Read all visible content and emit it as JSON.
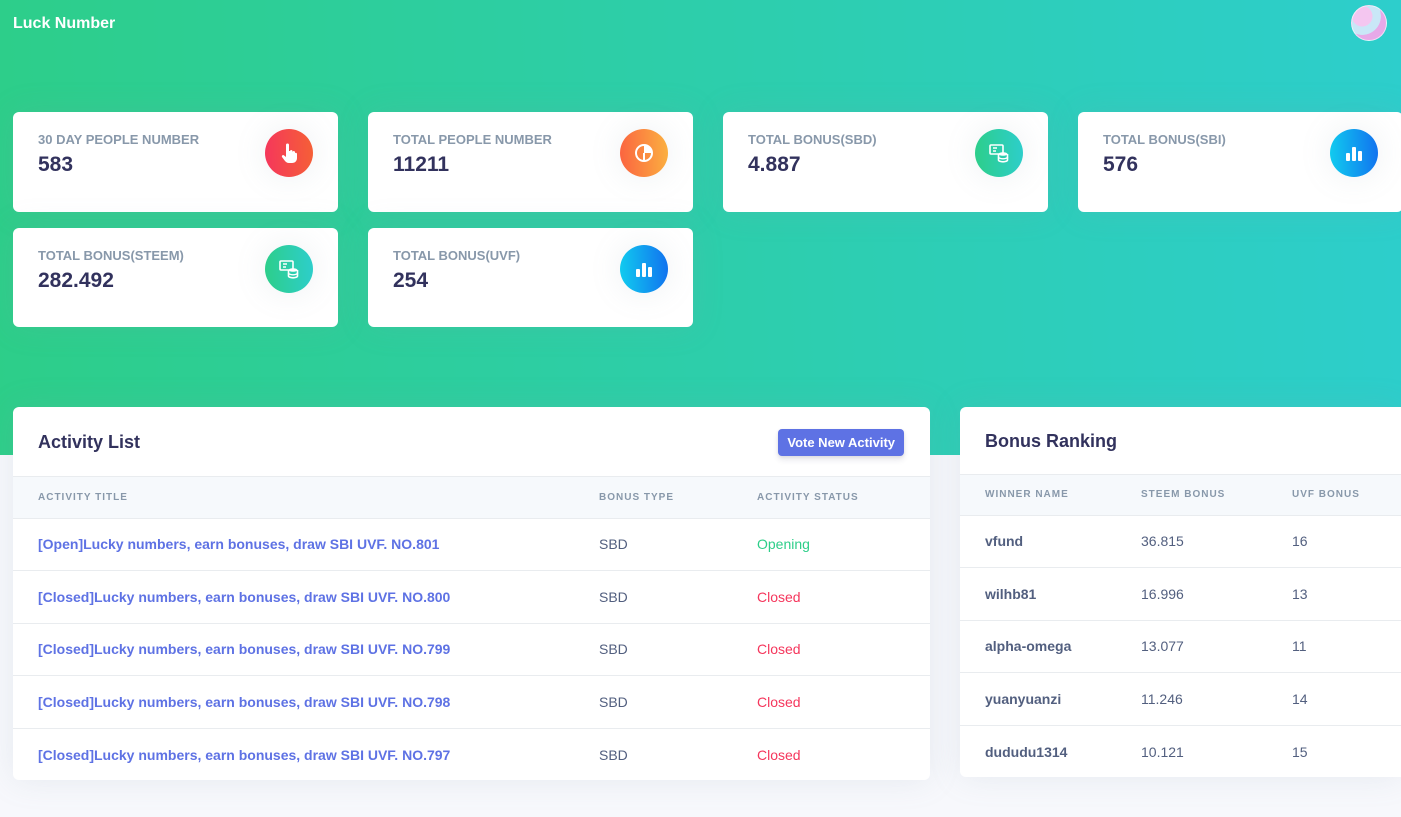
{
  "app": {
    "title": "Luck Number"
  },
  "colors": {
    "accent": "#5e72e4",
    "success": "#2dce89",
    "danger": "#f5365c"
  },
  "stats": [
    {
      "label": "30 DAY PEOPLE NUMBER",
      "value": "583",
      "icon": "hand-pointer-icon"
    },
    {
      "label": "TOTAL PEOPLE NUMBER",
      "value": "11211",
      "icon": "pie-chart-icon"
    },
    {
      "label": "TOTAL BONUS(SBD)",
      "value": "4.887",
      "icon": "money-coins-icon"
    },
    {
      "label": "TOTAL BONUS(SBI)",
      "value": "576",
      "icon": "bar-chart-icon"
    },
    {
      "label": "TOTAL BONUS(STEEM)",
      "value": "282.492",
      "icon": "money-coins-icon"
    },
    {
      "label": "TOTAL BONUS(UVF)",
      "value": "254",
      "icon": "bar-chart-icon"
    }
  ],
  "activity": {
    "title": "Activity List",
    "button": "Vote New Activity",
    "columns": [
      "ACTIVITY TITLE",
      "BONUS TYPE",
      "ACTIVITY STATUS"
    ],
    "rows": [
      {
        "title": "[Open]Lucky numbers, earn bonuses, draw SBI UVF. NO.801",
        "type": "SBD",
        "status": "Opening"
      },
      {
        "title": "[Closed]Lucky numbers, earn bonuses, draw SBI UVF. NO.800",
        "type": "SBD",
        "status": "Closed"
      },
      {
        "title": "[Closed]Lucky numbers, earn bonuses, draw SBI UVF. NO.799",
        "type": "SBD",
        "status": "Closed"
      },
      {
        "title": "[Closed]Lucky numbers, earn bonuses, draw SBI UVF. NO.798",
        "type": "SBD",
        "status": "Closed"
      },
      {
        "title": "[Closed]Lucky numbers, earn bonuses, draw SBI UVF. NO.797",
        "type": "SBD",
        "status": "Closed"
      }
    ]
  },
  "ranking": {
    "title": "Bonus Ranking",
    "columns": [
      "WINNER NAME",
      "STEEM BONUS",
      "UVF BONUS"
    ],
    "rows": [
      {
        "name": "vfund",
        "steem": "36.815",
        "uvf": "16"
      },
      {
        "name": "wilhb81",
        "steem": "16.996",
        "uvf": "13"
      },
      {
        "name": "alpha-omega",
        "steem": "13.077",
        "uvf": "11"
      },
      {
        "name": "yuanyuanzi",
        "steem": "11.246",
        "uvf": "14"
      },
      {
        "name": "dududu1314",
        "steem": "10.121",
        "uvf": "15"
      }
    ]
  }
}
